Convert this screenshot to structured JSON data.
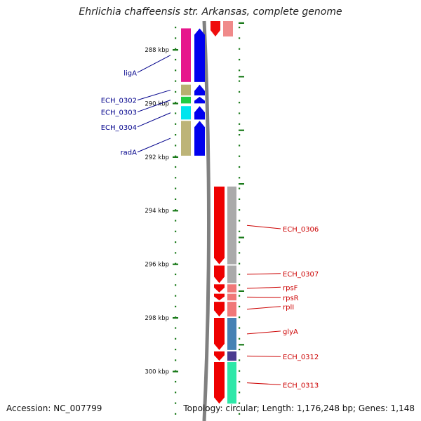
{
  "title": "Ehrlichia chaffeensis str. Arkansas, complete genome",
  "footer": {
    "accession": "Accession: NC_007799",
    "topology": "Topology: circular; Length: 1,176,248 bp; Genes: 1,148"
  },
  "ruler": {
    "start_kbp": 287,
    "end_kbp": 301,
    "major_labels": [
      "288 kbp",
      "290 kbp",
      "292 kbp",
      "294 kbp",
      "296 kbp",
      "298 kbp",
      "300 kbp"
    ]
  },
  "colors": {
    "left_strand": "#0000ee",
    "right_strand": "#ee0000",
    "ruler_ticks": "#1a7a1a",
    "backbone": "#808080",
    "left_label": "#00008b",
    "right_label": "#cc0000"
  },
  "genes": [
    {
      "strand": "left",
      "start_kbp": 287.2,
      "end_kbp": 289.2,
      "label": "ligA",
      "label_kbp": 288.95,
      "cog_color": "#e6168c"
    },
    {
      "strand": "left",
      "start_kbp": 289.3,
      "end_kbp": 289.7,
      "label": "ECH_0302",
      "label_kbp": 289.98,
      "cog_color": "#b8b070"
    },
    {
      "strand": "left",
      "start_kbp": 289.75,
      "end_kbp": 290.0,
      "label": "ECH_0303",
      "label_kbp": 290.42,
      "cog_color": "#22cc44"
    },
    {
      "strand": "left",
      "start_kbp": 290.1,
      "end_kbp": 290.6,
      "label": "ECH_0304",
      "label_kbp": 290.98,
      "cog_color": "#00e5ee"
    },
    {
      "strand": "left",
      "start_kbp": 290.65,
      "end_kbp": 291.95,
      "label": "radA",
      "label_kbp": 291.92,
      "cog_color": "#bdb478"
    },
    {
      "strand": "right",
      "start_kbp": 293.1,
      "end_kbp": 296.0,
      "label": "ECH_0306",
      "label_kbp": 294.78,
      "cog_color": "#aaaaaa"
    },
    {
      "strand": "right",
      "start_kbp": 296.05,
      "end_kbp": 296.7,
      "label": "ECH_0307",
      "label_kbp": 296.45,
      "cog_color": "#aaaaaa"
    },
    {
      "strand": "right",
      "start_kbp": 296.75,
      "end_kbp": 297.05,
      "label": "rpsF",
      "label_kbp": 296.96,
      "cog_color": "#f07878"
    },
    {
      "strand": "right",
      "start_kbp": 297.1,
      "end_kbp": 297.35,
      "label": "rpsR",
      "label_kbp": 297.34,
      "cog_color": "#f07878"
    },
    {
      "strand": "right",
      "start_kbp": 297.4,
      "end_kbp": 297.95,
      "label": "rplI",
      "label_kbp": 297.68,
      "cog_color": "#f07878"
    },
    {
      "strand": "right",
      "start_kbp": 298.0,
      "end_kbp": 299.2,
      "label": "glyA",
      "label_kbp": 298.6,
      "cog_color": "#4682b4"
    },
    {
      "strand": "right",
      "start_kbp": 299.25,
      "end_kbp": 299.6,
      "label": "ECH_0312",
      "label_kbp": 299.55,
      "cog_color": "#4b3b8f"
    },
    {
      "strand": "right",
      "start_kbp": 299.65,
      "end_kbp": 301.2,
      "label": "ECH_0313",
      "label_kbp": 300.6,
      "cog_color": "#2ee8a8"
    }
  ]
}
